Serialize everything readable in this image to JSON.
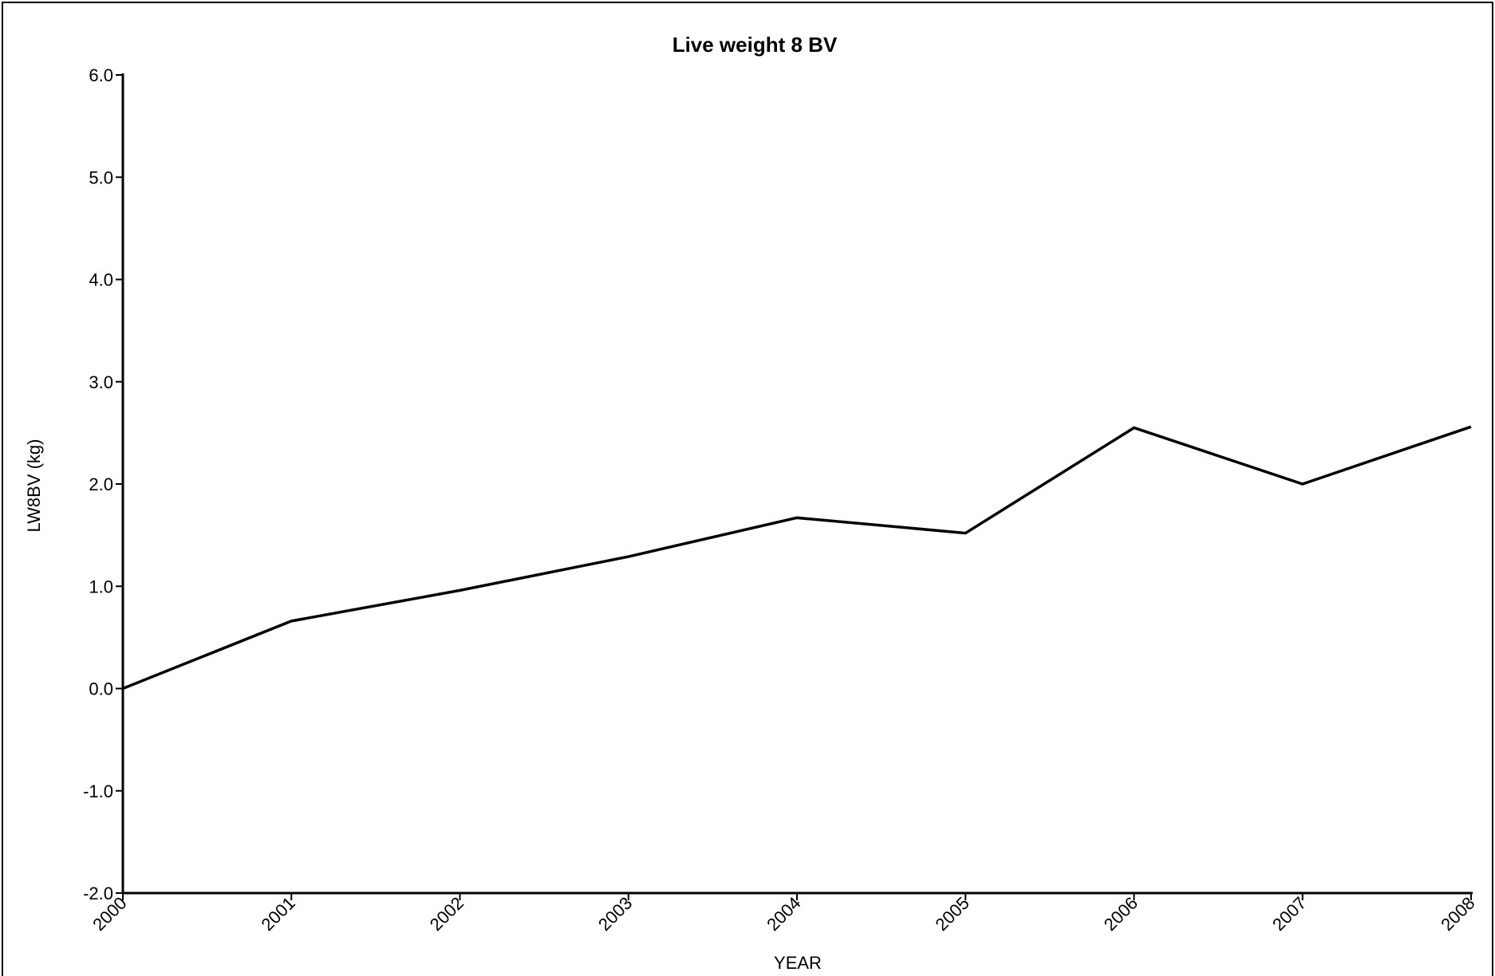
{
  "chart_data": {
    "type": "line",
    "title": "Live weight 8 BV",
    "xlabel": "YEAR",
    "ylabel": "LW8BV (kg)",
    "x": [
      "2000",
      "2001",
      "2002",
      "2003",
      "2004",
      "2005",
      "2006",
      "2007",
      "2008"
    ],
    "xlim": [
      2000,
      2008
    ],
    "ylim": [
      -2.0,
      6.0
    ],
    "y_ticks": [
      "-2.0",
      "-1.0",
      "0.0",
      "1.0",
      "2.0",
      "3.0",
      "4.0",
      "5.0",
      "6.0"
    ],
    "series": [
      {
        "values": [
          0.0,
          0.66,
          0.96,
          1.29,
          1.67,
          1.52,
          2.55,
          2.0,
          2.56
        ]
      }
    ],
    "grid": false,
    "line_color": "#000000"
  }
}
